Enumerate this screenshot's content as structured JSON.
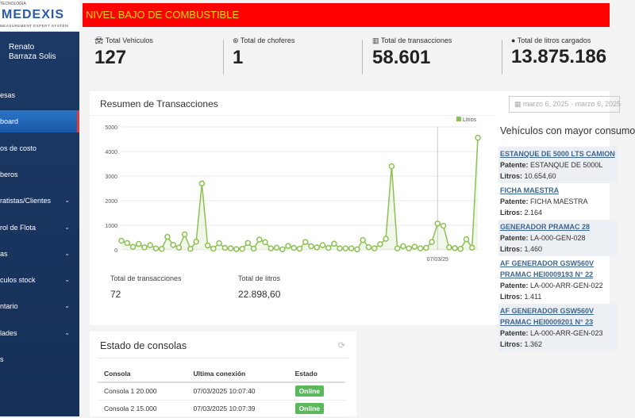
{
  "logo": {
    "top": "TECNOLOGIA",
    "brand": "MEDEXIS",
    "sub": "MEASUREMENT EXPERT SYSTEM"
  },
  "user": {
    "first": "Renato",
    "last": "Barraza Solis"
  },
  "sidebar": {
    "items": [
      {
        "label": "esas",
        "chevron": false
      },
      {
        "label": "board",
        "chevron": false,
        "active": true
      },
      {
        "label": "os de costo",
        "chevron": false
      },
      {
        "label": "beros",
        "chevron": false
      },
      {
        "label": "ratistas/Clientes",
        "chevron": true
      },
      {
        "label": "rol de Flota",
        "chevron": true
      },
      {
        "label": "as",
        "chevron": true
      },
      {
        "label": "culos stock",
        "chevron": true
      },
      {
        "label": "ntario",
        "chevron": true
      },
      {
        "label": "lades",
        "chevron": true
      },
      {
        "label": "s",
        "chevron": false
      }
    ]
  },
  "banner": {
    "text": "NIVEL BAJO DE COMBUSTIBLE",
    "bg": "#fe0000",
    "color": "#ffd900"
  },
  "stats": [
    {
      "icon": "car-icon",
      "label": "Total Vehiculos",
      "value": "127"
    },
    {
      "icon": "steering-wheel-icon",
      "label": "Total de choferes",
      "value": "1"
    },
    {
      "icon": "bar-chart-icon",
      "label": "Total de transacciones",
      "value": "58.601"
    },
    {
      "icon": "drop-icon",
      "label": "Total de litros cargados",
      "value": "13.875.186"
    }
  ],
  "summary": {
    "title": "Resumen de Transacciones",
    "date_range": "marzo 6, 2025 - marzo 6, 2025",
    "tot_tx_label": "Total de transacciones",
    "tot_tx": "72",
    "tot_l_label": "Total de litros",
    "tot_l": "22.898,60"
  },
  "chart_data": {
    "type": "area",
    "legend": "Litros",
    "legend_position": "top-right",
    "color": "#8cc152",
    "ylim": [
      0,
      5000
    ],
    "yticks": [
      "0",
      "1000",
      "2000",
      "3000",
      "4000",
      "5000"
    ],
    "grid": true,
    "x_tick": {
      "index": 55,
      "label": "07/03/25"
    },
    "values": [
      370,
      280,
      120,
      240,
      100,
      190,
      60,
      40,
      530,
      200,
      90,
      630,
      40,
      330,
      2700,
      180,
      50,
      270,
      80,
      60,
      30,
      40,
      280,
      50,
      420,
      310,
      60,
      90,
      20,
      160,
      80,
      50,
      320,
      150,
      100,
      190,
      80,
      250,
      60,
      60,
      60,
      20,
      400,
      110,
      60,
      230,
      450,
      3400,
      60,
      150,
      60,
      130,
      60,
      80,
      320,
      1070,
      980,
      100,
      70,
      40,
      430,
      90,
      4560
    ]
  },
  "vehicles": {
    "title": "Vehículos con mayor consumo",
    "patente_label": "Patente:",
    "litros_label": "Litros:",
    "items": [
      {
        "name": "ESTANQUE DE 5000 LTS CAMION",
        "patente": "ESTANQUE DE 5000L",
        "litros": "10.654,60"
      },
      {
        "name": "FICHA MAESTRA",
        "patente": "FICHA MAESTRA",
        "litros": "2.164"
      },
      {
        "name": "GENERADOR PRAMAC 28",
        "patente": "LA-000-GEN-028",
        "litros": "1.460"
      },
      {
        "name": "AF GENERADOR GSW560V PRAMAC HEI0009193 N° 22",
        "patente": "LA-000-ARR-GEN-022",
        "litros": "1.411"
      },
      {
        "name": "AF GENERADOR GSW560V PRAMAC HEI0009201 N° 23",
        "patente": "LA-000-ARR-GEN-023",
        "litros": "1.362"
      }
    ]
  },
  "consolas": {
    "title": "Estado de consolas",
    "headers": [
      "Consola",
      "Ultima conexión",
      "Estado"
    ],
    "rows": [
      {
        "name": "Consola 1 20.000",
        "last": "07/03/2025 10:07:40",
        "status": "Online"
      },
      {
        "name": "Consola 2 15.000",
        "last": "07/03/2025 10:07:39",
        "status": "Online"
      }
    ]
  }
}
